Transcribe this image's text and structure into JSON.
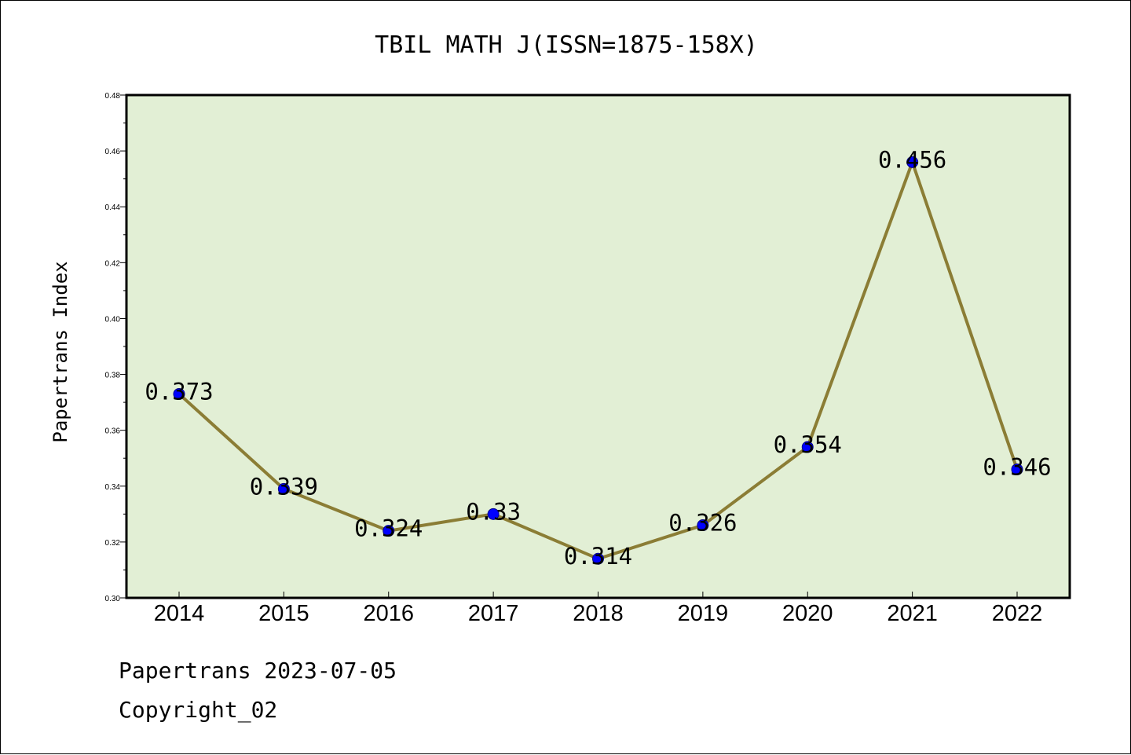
{
  "chart_data": {
    "type": "line",
    "title": "TBIL MATH J(ISSN=1875-158X)",
    "xlabel": "",
    "ylabel": "Papertrans Index",
    "categories": [
      "2014",
      "2015",
      "2016",
      "2017",
      "2018",
      "2019",
      "2020",
      "2021",
      "2022"
    ],
    "series": [
      {
        "values": [
          0.373,
          0.339,
          0.324,
          0.33,
          0.314,
          0.326,
          0.354,
          0.456,
          0.346
        ],
        "data_labels": [
          "0.373",
          "0.339",
          "0.324",
          "0.33",
          "0.314",
          "0.326",
          "0.354",
          "0.456",
          "0.346"
        ]
      }
    ],
    "ylim": [
      0.3,
      0.48
    ],
    "yticks": [
      "0.30",
      "0.32",
      "0.34",
      "0.36",
      "0.38",
      "0.40",
      "0.42",
      "0.44",
      "0.46",
      "0.48"
    ],
    "grid": false,
    "legend": "none",
    "colors": {
      "plot_background": "#E2EFD5",
      "line": "#8B7D35",
      "marker": "#0000FF"
    }
  },
  "footer": {
    "source_line": "Papertrans 2023-07-05",
    "copyright": "Copyright_02"
  }
}
